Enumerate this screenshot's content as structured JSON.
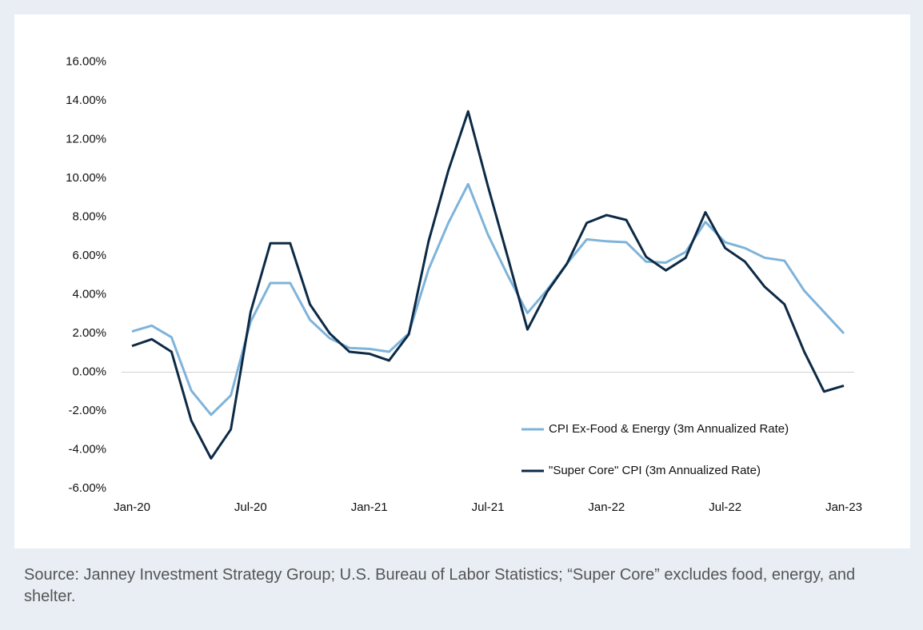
{
  "chart_data": {
    "type": "line",
    "categories": [
      "Jan-20",
      null,
      null,
      null,
      null,
      null,
      "Jul-20",
      null,
      null,
      null,
      null,
      null,
      "Jan-21",
      null,
      null,
      null,
      null,
      null,
      "Jul-21",
      null,
      null,
      null,
      null,
      null,
      "Jan-22",
      null,
      null,
      null,
      null,
      null,
      "Jul-22",
      null,
      null,
      null,
      null,
      null,
      "Jan-23"
    ],
    "series": [
      {
        "name": "CPI Ex-Food & Energy (3m Annualized Rate)",
        "color": "#7fb3da",
        "values": [
          2.1,
          2.4,
          1.8,
          -0.95,
          -2.2,
          -1.2,
          2.6,
          4.6,
          4.6,
          2.7,
          1.75,
          1.25,
          1.2,
          1.05,
          2.0,
          5.3,
          7.7,
          9.7,
          7.1,
          5.0,
          3.05,
          4.25,
          5.6,
          6.85,
          6.75,
          6.7,
          5.7,
          5.65,
          6.2,
          7.75,
          6.7,
          6.4,
          5.9,
          5.75,
          4.2,
          3.1,
          2.0
        ]
      },
      {
        "name": "\"Super Core\" CPI  (3m Annualized Rate)",
        "color": "#0d2a45",
        "values": [
          1.35,
          1.7,
          1.05,
          -2.5,
          -4.45,
          -2.95,
          3.1,
          6.65,
          6.65,
          3.5,
          2.0,
          1.05,
          0.95,
          0.6,
          1.95,
          6.75,
          10.4,
          13.45,
          9.6,
          5.95,
          2.2,
          4.15,
          5.6,
          7.7,
          8.1,
          7.85,
          5.95,
          5.25,
          5.9,
          8.25,
          6.4,
          5.7,
          4.4,
          3.5,
          1.05,
          -1.0,
          -0.7
        ]
      }
    ],
    "ylim": [
      -6,
      16
    ],
    "yticks": [
      {
        "value": -6,
        "label": "-6.00%"
      },
      {
        "value": -4,
        "label": "-4.00%"
      },
      {
        "value": -2,
        "label": "-2.00%"
      },
      {
        "value": 0,
        "label": "0.00%"
      },
      {
        "value": 2,
        "label": "2.00%"
      },
      {
        "value": 4,
        "label": "4.00%"
      },
      {
        "value": 6,
        "label": "6.00%"
      },
      {
        "value": 8,
        "label": "8.00%"
      },
      {
        "value": 10,
        "label": "10.00%"
      },
      {
        "value": 12,
        "label": "12.00%"
      },
      {
        "value": 14,
        "label": "14.00%"
      },
      {
        "value": 16,
        "label": "16.00%"
      }
    ],
    "grid": false,
    "legend": "lower right",
    "source": "Source: Janney Investment Strategy Group; U.S. Bureau of Labor Statistics; “Super Core” excludes food, energy, and shelter."
  }
}
